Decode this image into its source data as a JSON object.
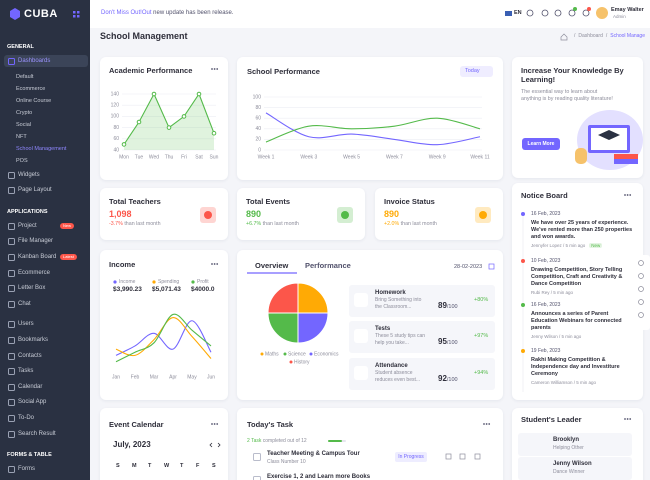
{
  "brand": "CUBA",
  "header": {
    "notice_strong": "Don't Miss Out!Out",
    "notice": "new update has been release.",
    "lang": "EN",
    "user": "Emay Walter",
    "role": "Admin"
  },
  "page": {
    "title": "School Management",
    "breadcrumb": [
      "Dashboard",
      "School Manage"
    ]
  },
  "sidebar": [
    {
      "title": "GENERAL",
      "items": [
        {
          "label": "Dashboards",
          "sub": [
            "Default",
            "Ecommerce",
            "Online Course",
            "Crypto",
            "Social",
            "NFT",
            "School Management",
            "POS"
          ]
        },
        {
          "label": "Widgets"
        },
        {
          "label": "Page Layout"
        }
      ]
    },
    {
      "title": "APPLICATIONS",
      "items": [
        {
          "label": "Project",
          "badge": "New"
        },
        {
          "label": "File Manager"
        },
        {
          "label": "Kanban Board",
          "badge": "Latest"
        },
        {
          "label": "Ecommerce"
        },
        {
          "label": "Letter Box"
        },
        {
          "label": "Chat"
        },
        {
          "label": "Users"
        },
        {
          "label": "Bookmarks"
        },
        {
          "label": "Contacts"
        },
        {
          "label": "Tasks"
        },
        {
          "label": "Calendar"
        },
        {
          "label": "Social App"
        },
        {
          "label": "To-Do"
        },
        {
          "label": "Search Result"
        }
      ]
    },
    {
      "title": "FORMS & TABLE",
      "items": [
        {
          "label": "Forms"
        }
      ]
    }
  ],
  "chart_data": [
    {
      "type": "line",
      "title": "Academic Performance",
      "categories": [
        "Mon",
        "Tue",
        "Wed",
        "Thu",
        "Fri",
        "Sat",
        "Sun"
      ],
      "values": [
        50,
        90,
        140,
        80,
        100,
        140,
        70
      ],
      "color": "#54ba4a",
      "area": true,
      "ylim": [
        40,
        140
      ],
      "yticks": [
        40,
        60,
        80,
        100,
        120,
        140
      ],
      "grid": true
    },
    {
      "type": "line",
      "title": "School Performance",
      "filter": "Today",
      "categories": [
        "Week 1",
        "Week 3",
        "Week 5",
        "Week 7",
        "Week 9",
        "Week 11"
      ],
      "series": [
        {
          "name": "Performance A",
          "color": "#7366ff",
          "values": [
            70,
            25,
            30,
            20,
            10,
            25
          ]
        },
        {
          "name": "Performance B",
          "color": "#54ba4a",
          "values": [
            15,
            45,
            40,
            45,
            60,
            40
          ]
        }
      ],
      "ylim": [
        0,
        100
      ],
      "yticks": [
        0,
        20,
        40,
        60,
        80,
        100
      ],
      "grid": true
    },
    {
      "type": "line",
      "title": "Income",
      "categories": [
        "Jan",
        "Feb",
        "Mar",
        "Apr",
        "May",
        "Jun"
      ],
      "series": [
        {
          "name": "Income",
          "total": "$3,990.23",
          "color": "#7366ff",
          "values": [
            20,
            35,
            55,
            30,
            75,
            25
          ]
        },
        {
          "name": "Spending",
          "total": "$5,071.43",
          "color": "#ffaa05",
          "values": [
            30,
            20,
            45,
            80,
            50,
            15
          ]
        },
        {
          "name": "Profit",
          "total": "$4000.0",
          "color": "#54ba4a",
          "values": [
            10,
            25,
            40,
            85,
            60,
            35
          ]
        }
      ],
      "ylim": [
        0,
        100
      ]
    },
    {
      "type": "pie",
      "categories": [
        "Maths",
        "Science",
        "Economics",
        "History"
      ],
      "values": [
        25,
        25,
        25,
        25
      ],
      "colors": [
        "#ffaa05",
        "#54ba4a",
        "#7366ff",
        "#fc564a"
      ]
    }
  ],
  "banner": {
    "title": "Increase Your Knowledge By Learning!",
    "text": "The essential way to learn about anything is by reading quality literature!",
    "button": "Learn More"
  },
  "stats": [
    {
      "title": "Total Teachers",
      "value": "1,098",
      "change": "-3.7%",
      "note": "than last month",
      "color": "#fc564a"
    },
    {
      "title": "Total Events",
      "value": "890",
      "change": "+6.7%",
      "note": "than last month",
      "color": "#54ba4a"
    },
    {
      "title": "Invoice Status",
      "value": "890",
      "change": "+2.0%",
      "note": "than last month",
      "color": "#ffaa05"
    }
  ],
  "overview": {
    "tabs": [
      "Overview",
      "Performance"
    ],
    "date": "28-02-2023",
    "items": [
      {
        "title": "Homework",
        "text": "Bring Something into the Classroom...",
        "score": "89",
        "out": "/100",
        "change": "+80%"
      },
      {
        "title": "Tests",
        "text": "These 5 study tips can help you take...",
        "score": "95",
        "out": "/100",
        "change": "+97%"
      },
      {
        "title": "Attendance",
        "text": "Student absence reduces even best...",
        "score": "92",
        "out": "/100",
        "change": "+94%"
      }
    ]
  },
  "notice": {
    "title": "Notice Board",
    "items": [
      {
        "date": "16 Feb, 2023",
        "text": "We have over 25 years of experience. We've rented more than 250 properties and won awards.",
        "meta": "Jennyfer Lopez / 5 min ago",
        "badge": "New"
      },
      {
        "date": "10 Feb, 2023",
        "text": "Drawing Competition, Story Telling Competition, Craft and Creativity & Dance Competition",
        "meta": "Rubi Rey / 5 min ago"
      },
      {
        "date": "16 Feb, 2023",
        "text": "Announces a series of Parent Education Webinars for connected parents",
        "meta": "Jenny Wilson / 5 min ago"
      },
      {
        "date": "19 Feb, 2023",
        "text": "Rakhi Making Competition & Independence day and Investiture Ceremony",
        "meta": "Cameron Williamson / 5 min ago"
      }
    ]
  },
  "calendar": {
    "title": "Event Calendar",
    "month": "July, 2023",
    "weekdays": [
      "S",
      "M",
      "T",
      "W",
      "T",
      "F",
      "S"
    ]
  },
  "tasks": {
    "title": "Today's Task",
    "done": "2 Task",
    "summary": "completed out of 12",
    "items": [
      {
        "title": "Teacher Meeting & Campus Tour",
        "sub": "Class Number 10",
        "status": "In Progress"
      },
      {
        "title": "Exercise 1, 2 and Learn more Books"
      }
    ]
  },
  "leaders": {
    "title": "Student's Leader",
    "items": [
      {
        "name": "Brooklyn",
        "role": "Helping Other"
      },
      {
        "name": "Jenny Wilson",
        "role": "Dance Winner"
      }
    ]
  }
}
